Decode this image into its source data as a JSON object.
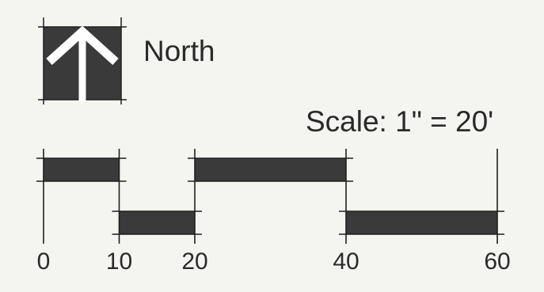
{
  "north": {
    "label": "North",
    "icon": "north-arrow-icon"
  },
  "scale": {
    "label": "Scale: 1\" = 20'",
    "ticks": [
      {
        "value": 0,
        "label": "0"
      },
      {
        "value": 10,
        "label": "10"
      },
      {
        "value": 20,
        "label": "20"
      },
      {
        "value": 40,
        "label": "40"
      },
      {
        "value": 60,
        "label": "60"
      }
    ],
    "segments": [
      {
        "start": 0,
        "end": 10,
        "row": "upper"
      },
      {
        "start": 10,
        "end": 20,
        "row": "lower"
      },
      {
        "start": 20,
        "end": 40,
        "row": "upper"
      },
      {
        "start": 40,
        "end": 60,
        "row": "lower"
      }
    ]
  },
  "colors": {
    "ink": "#1f1f1f",
    "fill": "#3a3a3a",
    "background": "#f4f4f1"
  }
}
